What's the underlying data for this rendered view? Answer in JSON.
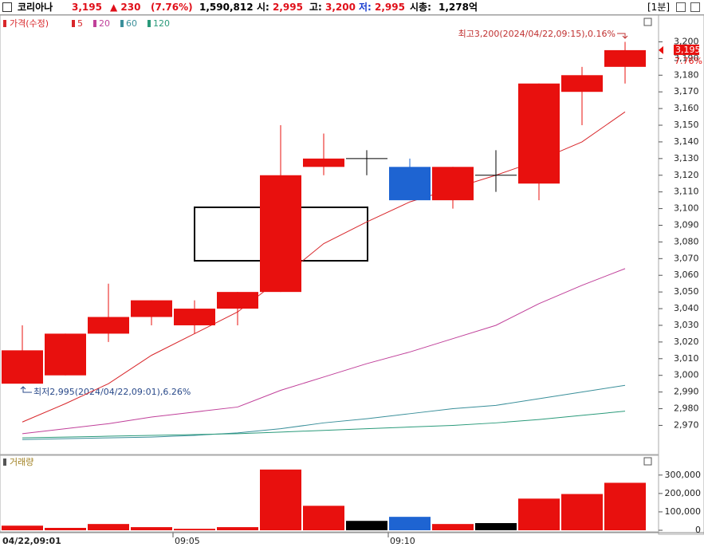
{
  "header": {
    "name": "코리아나",
    "price": "3,195",
    "change": "▲ 230",
    "change_pct": "(7.76%)",
    "volume": "1,590,812",
    "open_label": "시:",
    "open": "2,995",
    "high_label": "고:",
    "high": "3,200",
    "low_label": "저:",
    "low": "2,995",
    "cap_label": "시총:",
    "cap": "1,278억",
    "interval": "[1분]"
  },
  "chart_data": [
    {
      "type": "candlestick",
      "legend_title": "가격(수정)",
      "categories": [
        "04/22,09:01",
        null,
        null,
        null,
        "09:05",
        null,
        null,
        null,
        null,
        "09:10",
        null,
        null,
        null,
        null,
        null
      ],
      "open": [
        2995,
        3000,
        3025,
        3035,
        3030,
        3040,
        3050,
        3125,
        3130,
        3125,
        3105,
        3120,
        3115,
        3170,
        3185
      ],
      "high": [
        3030,
        3025,
        3055,
        3045,
        3045,
        3050,
        3150,
        3145,
        3135,
        3130,
        3125,
        3135,
        3175,
        3185,
        3200
      ],
      "low": [
        2995,
        3000,
        3020,
        3030,
        3025,
        3030,
        3050,
        3120,
        3120,
        3105,
        3100,
        3110,
        3105,
        3150,
        3175
      ],
      "close": [
        3015,
        3025,
        3035,
        3045,
        3040,
        3050,
        3120,
        3130,
        3130,
        3105,
        3125,
        3120,
        3175,
        3180,
        3195
      ],
      "up_color": "#e8100e",
      "down_color": "#1e64d2",
      "flat_color": "#000000",
      "lines": [
        {
          "name": "5",
          "color": "#d8262a",
          "values": [
            2972,
            2983,
            2995,
            3012,
            3025,
            3038,
            3058,
            3079,
            3092,
            3104,
            3112,
            3120,
            3129,
            3140,
            3158
          ]
        },
        {
          "name": "20",
          "color": "#c0409a",
          "values": [
            2965,
            2968,
            2971,
            2975,
            2978,
            2981,
            2991,
            2999,
            3007,
            3014,
            3022,
            3030,
            3043,
            3054,
            3064
          ]
        },
        {
          "name": "60",
          "color": "#3a8f9a",
          "values": [
            2961.5,
            2962,
            2962.5,
            2963,
            2964,
            2965.5,
            2968,
            2971.5,
            2974,
            2977,
            2980,
            2982,
            2986,
            2990,
            2994
          ]
        },
        {
          "name": "120",
          "color": "#2a9a7a",
          "values": [
            2962.5,
            2963,
            2963.5,
            2964,
            2964.5,
            2965,
            2966,
            2967,
            2968,
            2969,
            2970,
            2971.5,
            2973.5,
            2976,
            2978.5
          ]
        }
      ],
      "ylim": [
        2953,
        3216
      ],
      "yticks": [
        {
          "value": 2970,
          "label": "2,970"
        },
        {
          "value": 2980,
          "label": "2,980"
        },
        {
          "value": 2990,
          "label": "2,990"
        },
        {
          "value": 3000,
          "label": "3,000"
        },
        {
          "value": 3010,
          "label": "3,010"
        },
        {
          "value": 3020,
          "label": "3,020"
        },
        {
          "value": 3030,
          "label": "3,030"
        },
        {
          "value": 3040,
          "label": "3,040"
        },
        {
          "value": 3050,
          "label": "3,050"
        },
        {
          "value": 3060,
          "label": "3,060"
        },
        {
          "value": 3070,
          "label": "3,070"
        },
        {
          "value": 3080,
          "label": "3,080"
        },
        {
          "value": 3090,
          "label": "3,090"
        },
        {
          "value": 3100,
          "label": "3,100"
        },
        {
          "value": 3110,
          "label": "3,110"
        },
        {
          "value": 3120,
          "label": "3,120"
        },
        {
          "value": 3130,
          "label": "3,130"
        },
        {
          "value": 3140,
          "label": "3,140"
        },
        {
          "value": 3150,
          "label": "3,150"
        },
        {
          "value": 3160,
          "label": "3,160"
        },
        {
          "value": 3170,
          "label": "3,170"
        },
        {
          "value": 3180,
          "label": "3,180"
        },
        {
          "value": 3190,
          "label": "3,190"
        },
        {
          "value": 3200,
          "label": "3,200"
        }
      ],
      "high_note": "최고3,200(2024/04/22,09:15),0.16%",
      "low_note": "최저2,995(2024/04/22,09:01),6.26%",
      "current": {
        "value": 3195,
        "label": "3,195",
        "change": "7.76%"
      }
    },
    {
      "type": "bar",
      "title": "거래량",
      "values": [
        25000,
        13000,
        34000,
        17000,
        8000,
        17000,
        330000,
        133000,
        51000,
        73000,
        34000,
        39000,
        172000,
        197000,
        258000
      ],
      "ylim": [
        0,
        403000
      ],
      "yticks": [
        0,
        {
          "value": 100000,
          "label": "100,000"
        },
        {
          "value": 200000,
          "label": "200,000"
        },
        {
          "value": 300000,
          "label": "300,000"
        }
      ]
    }
  ]
}
